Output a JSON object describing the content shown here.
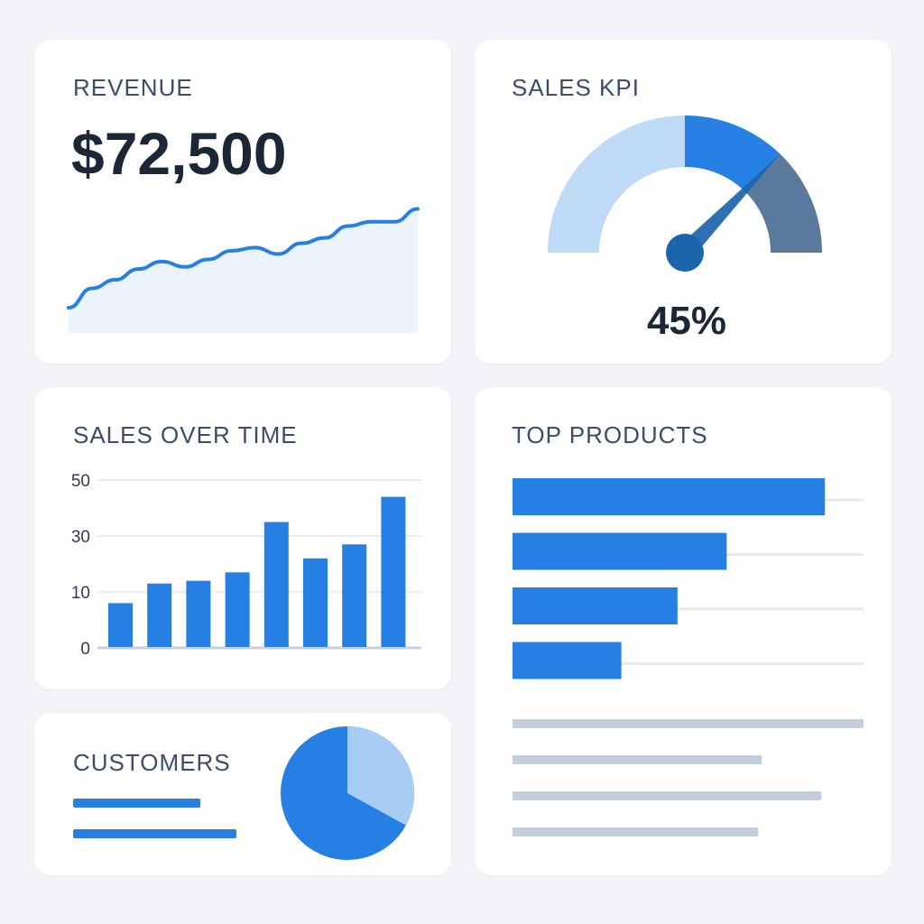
{
  "revenue": {
    "title": "REVENUE",
    "value": "$72,500",
    "trend": [
      0.0,
      0.18,
      0.26,
      0.36,
      0.43,
      0.38,
      0.45,
      0.53,
      0.56,
      0.5,
      0.6,
      0.65,
      0.76,
      0.8,
      0.8,
      0.92
    ]
  },
  "kpi": {
    "title": "SALES KPI",
    "value": "45%",
    "percent": 45
  },
  "sales": {
    "title": "SALES OVER TIME",
    "chart_data": {
      "type": "bar",
      "title": "SALES OVER TIME",
      "yticks": [
        "0",
        "10",
        "30",
        "50"
      ],
      "values": [
        8,
        13,
        14,
        17,
        35,
        22,
        27,
        44
      ],
      "ylim": [
        0,
        50
      ]
    }
  },
  "products": {
    "title": "TOP PRODUCTS",
    "bars": [
      0.89,
      0.61,
      0.47,
      0.31
    ],
    "lines": [
      1.0,
      0.71,
      0.88,
      0.7
    ]
  },
  "customers": {
    "title": "CUSTOMERS",
    "share": 0.33
  },
  "colors": {
    "primary": "#2680e3",
    "light": "#bedaf6",
    "dark": "#5a7a9d",
    "needle": "#1b65ad"
  }
}
